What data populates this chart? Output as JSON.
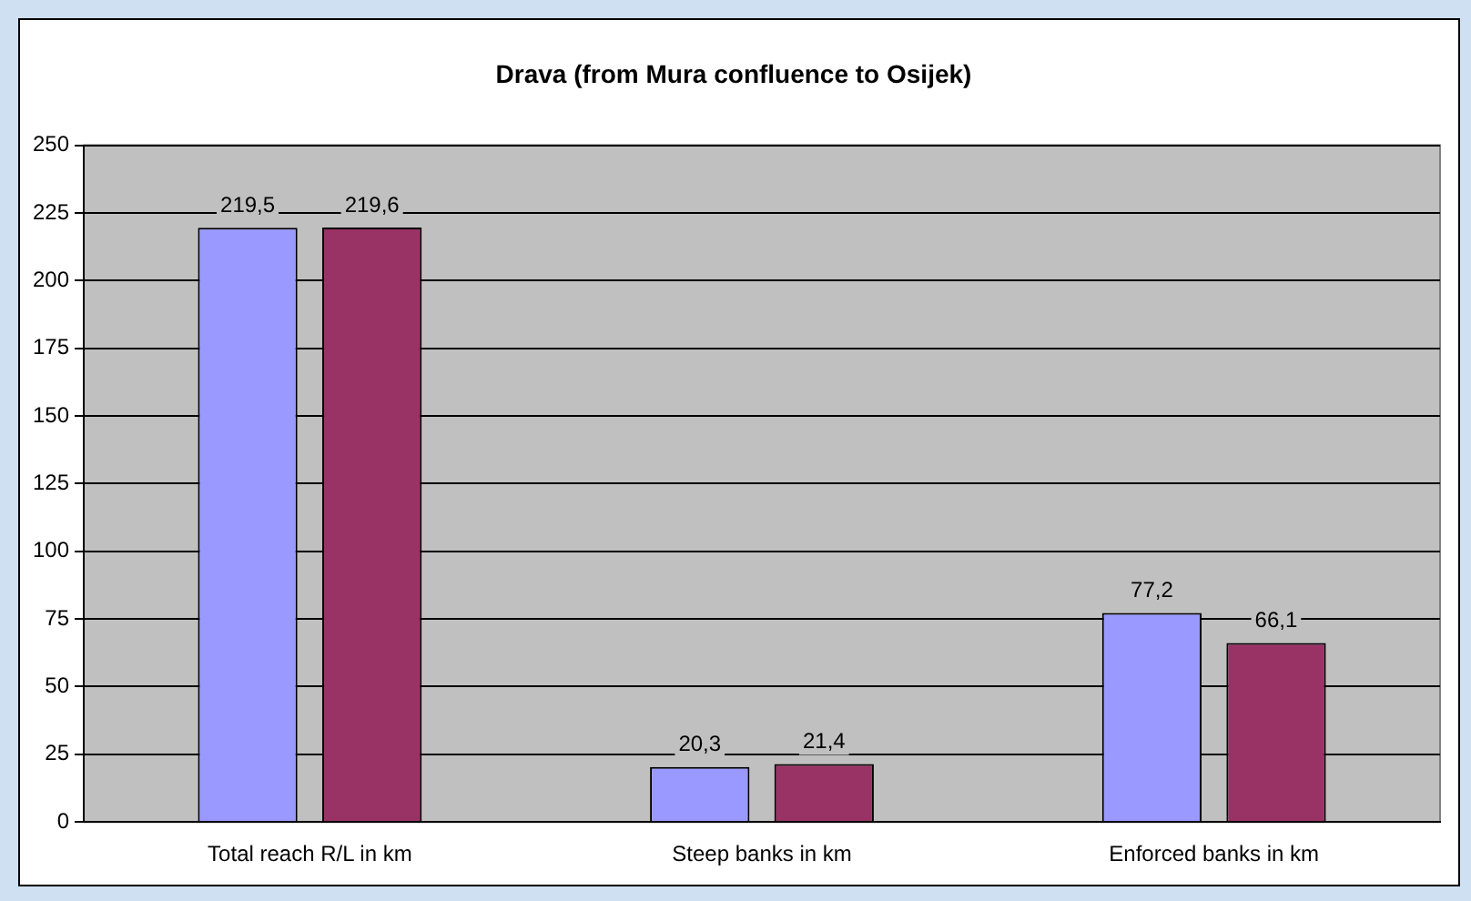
{
  "chart_data": {
    "type": "bar",
    "title": "Drava (from Mura confluence to Osijek)",
    "categories": [
      "Total reach R/L in km",
      "Steep banks in km",
      "Enforced banks in km"
    ],
    "series": [
      {
        "color": "#9999ff",
        "values": [
          219.5,
          20.3,
          77.2
        ],
        "value_labels": [
          "219,5",
          "20,3",
          "77,2"
        ]
      },
      {
        "color": "#993366",
        "values": [
          219.6,
          21.4,
          66.1
        ],
        "value_labels": [
          "219,6",
          "21,4",
          "66,1"
        ]
      }
    ],
    "ylim": [
      0,
      250
    ],
    "yticks": [
      0,
      25,
      50,
      75,
      100,
      125,
      150,
      175,
      200,
      225,
      250
    ],
    "grid": "y",
    "legend": false
  }
}
